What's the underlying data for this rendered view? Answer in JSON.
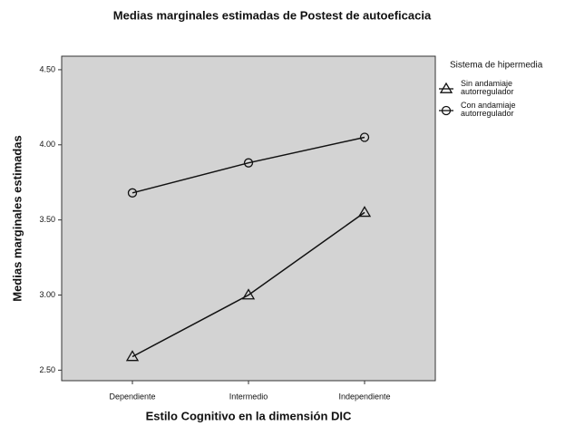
{
  "chart_data": {
    "type": "line",
    "title": "Medias marginales estimadas de Postest de autoeficacia",
    "x_label": "Estilo Cognitivo en la dimensión DIC",
    "y_label": "Medias marginales estimadas",
    "legend_title": "Sistema de hipermedia",
    "legend": "right",
    "categories": [
      "Dependiente",
      "Intermedio",
      "Independiente"
    ],
    "series": [
      {
        "name": "Sin andamiaje autorregulador",
        "color": "#111111",
        "marker": "triangle",
        "values": [
          2.59,
          3.0,
          3.55
        ]
      },
      {
        "name": "Con andamiaje autorregulador",
        "color": "#111111",
        "marker": "circle",
        "values": [
          3.68,
          3.88,
          4.05
        ]
      }
    ],
    "ylim": [
      2.43,
      4.59
    ],
    "yticks": [
      {
        "value": 2.5,
        "label": "2.50"
      },
      {
        "value": 3,
        "label": "3.00"
      },
      {
        "value": 3.5,
        "label": "3.50"
      },
      {
        "value": 4,
        "label": "4.00"
      },
      {
        "value": 4.5,
        "label": "4.50"
      }
    ],
    "plot_background": "#d3d3d3"
  }
}
